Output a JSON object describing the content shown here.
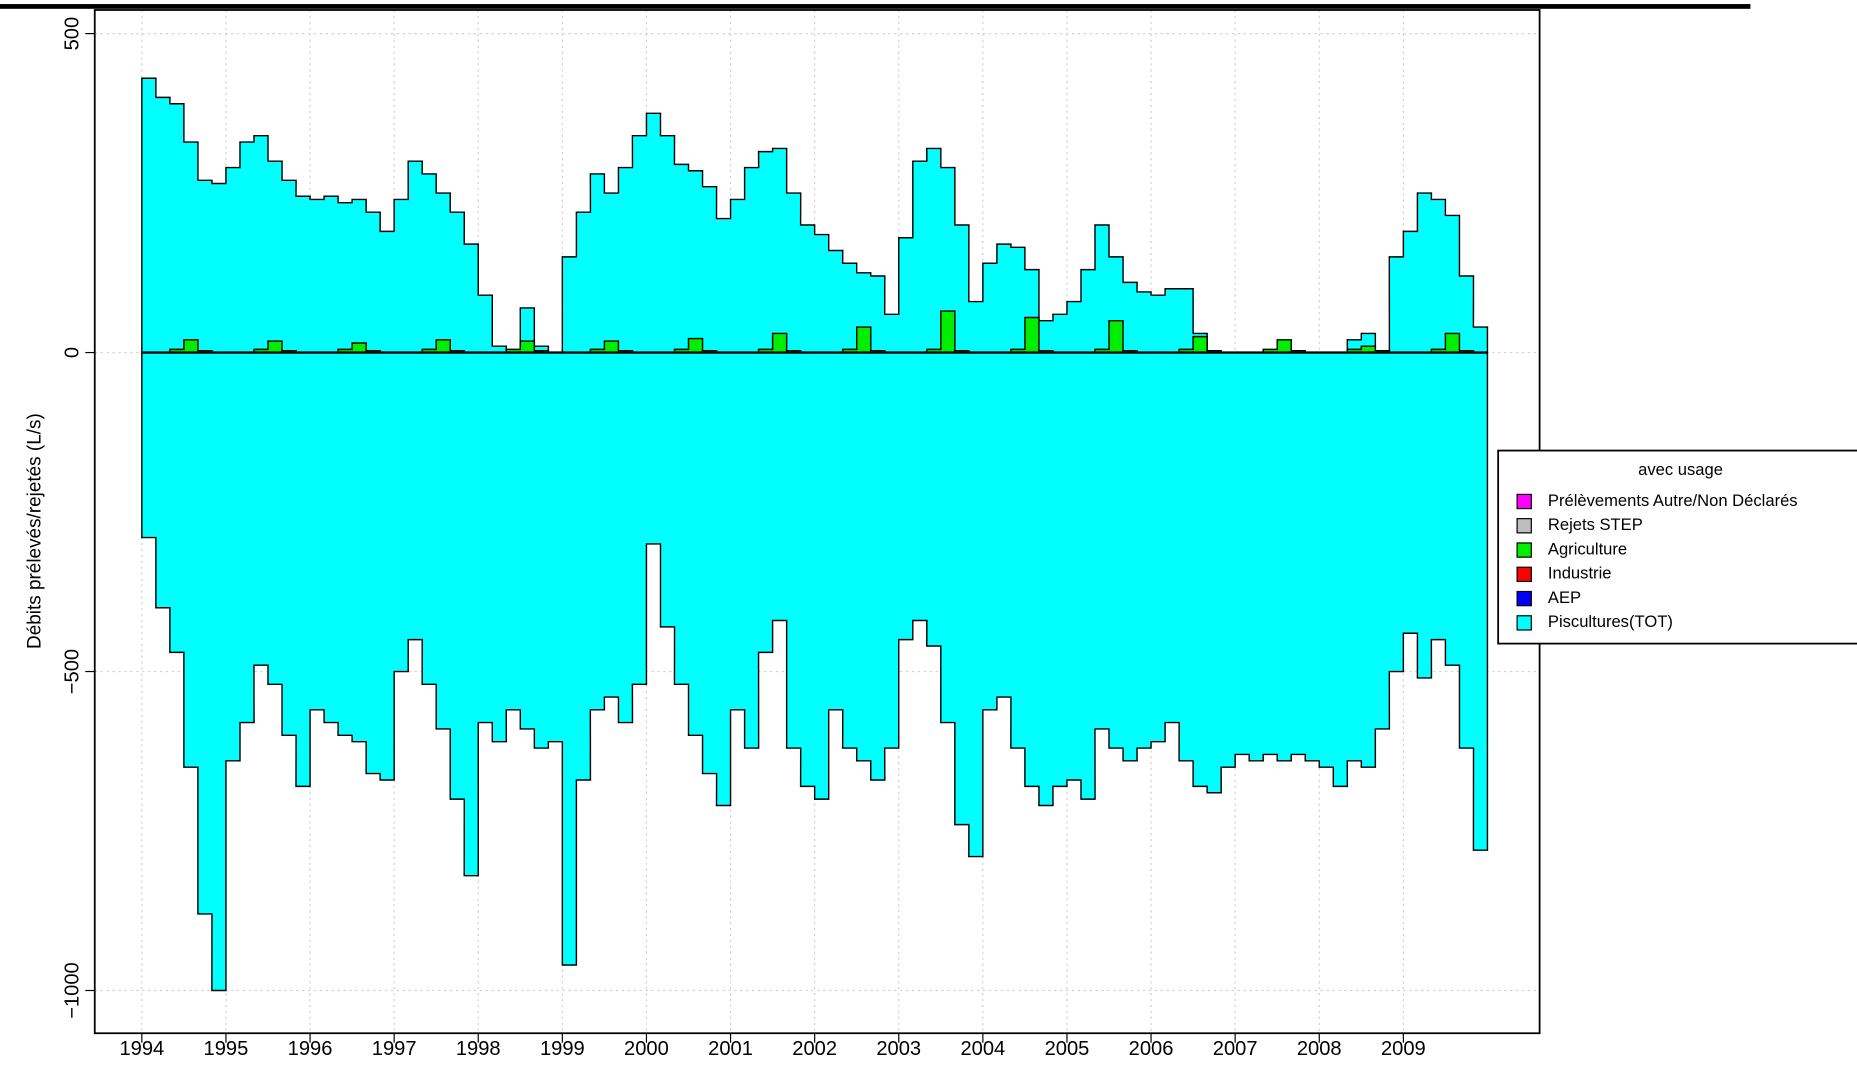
{
  "chart_data": {
    "type": "step-area",
    "ylabel": "Débits prélevés/rejetés (L/s)",
    "legend_title": "avec usage",
    "x": [
      1994,
      1994.167,
      1994.333,
      1994.5,
      1994.667,
      1994.833,
      1995,
      1995.167,
      1995.333,
      1995.5,
      1995.667,
      1995.833,
      1996,
      1996.167,
      1996.333,
      1996.5,
      1996.667,
      1996.833,
      1997,
      1997.167,
      1997.333,
      1997.5,
      1997.667,
      1997.833,
      1998,
      1998.167,
      1998.333,
      1998.5,
      1998.667,
      1998.833,
      1999,
      1999.167,
      1999.333,
      1999.5,
      1999.667,
      1999.833,
      2000,
      2000.167,
      2000.333,
      2000.5,
      2000.667,
      2000.833,
      2001,
      2001.167,
      2001.333,
      2001.5,
      2001.667,
      2001.833,
      2002,
      2002.167,
      2002.333,
      2002.5,
      2002.667,
      2002.833,
      2003,
      2003.167,
      2003.333,
      2003.5,
      2003.667,
      2003.833,
      2004,
      2004.167,
      2004.333,
      2004.5,
      2004.667,
      2004.833,
      2005,
      2005.167,
      2005.333,
      2005.5,
      2005.667,
      2005.833,
      2006,
      2006.167,
      2006.333,
      2006.5,
      2006.667,
      2006.833,
      2007,
      2007.167,
      2007.333,
      2007.5,
      2007.667,
      2007.833,
      2008,
      2008.167,
      2008.333,
      2008.5,
      2008.667,
      2008.833,
      2009,
      2009.167,
      2009.333,
      2009.5,
      2009.667,
      2009.833
    ],
    "xlim": [
      1993.44,
      2010.62
    ],
    "xticks": [
      1994,
      1995,
      1996,
      1997,
      1998,
      1999,
      2000,
      2001,
      2002,
      2003,
      2004,
      2005,
      2006,
      2007,
      2008,
      2009
    ],
    "ylim": [
      -1067,
      537
    ],
    "yticks": [
      500,
      0,
      {
        "value": -500,
        "label": "−500"
      },
      {
        "value": -1000,
        "label": "−1000"
      }
    ],
    "grid": true,
    "series": [
      {
        "name": "Prélèvements Autre/Non Déclarés",
        "color": "#ff00ff"
      },
      {
        "name": "Rejets STEP",
        "color": "#bebebe"
      },
      {
        "name": "Agriculture",
        "color": "#00ee00",
        "values": [
          0,
          0,
          5,
          20,
          3,
          0,
          0,
          0,
          5,
          18,
          3,
          0,
          0,
          0,
          5,
          15,
          3,
          0,
          0,
          0,
          5,
          20,
          3,
          0,
          0,
          0,
          5,
          18,
          3,
          0,
          0,
          0,
          5,
          18,
          3,
          0,
          0,
          0,
          5,
          22,
          3,
          0,
          0,
          0,
          5,
          30,
          3,
          0,
          0,
          0,
          5,
          40,
          3,
          0,
          0,
          0,
          5,
          65,
          3,
          0,
          0,
          0,
          5,
          55,
          3,
          0,
          0,
          0,
          5,
          50,
          3,
          0,
          0,
          0,
          5,
          25,
          3,
          0,
          0,
          0,
          5,
          20,
          3,
          0,
          0,
          0,
          5,
          10,
          3,
          0,
          0,
          0,
          5,
          30,
          3,
          0
        ]
      },
      {
        "name": "Industrie",
        "color": "#ff0000"
      },
      {
        "name": "AEP",
        "color": "#0000ff"
      },
      {
        "name": "Piscultures(TOT)",
        "color": "#00ffff",
        "values": [
          430,
          400,
          390,
          330,
          270,
          265,
          290,
          330,
          340,
          300,
          270,
          245,
          240,
          245,
          235,
          240,
          220,
          190,
          240,
          300,
          280,
          250,
          220,
          170,
          90,
          10,
          0,
          70,
          10,
          0,
          150,
          220,
          280,
          250,
          290,
          340,
          375,
          340,
          295,
          285,
          260,
          210,
          240,
          290,
          315,
          320,
          250,
          200,
          185,
          160,
          140,
          125,
          120,
          60,
          180,
          300,
          320,
          290,
          200,
          80,
          140,
          170,
          165,
          130,
          50,
          60,
          80,
          130,
          200,
          150,
          110,
          95,
          90,
          100,
          100,
          30,
          0,
          0,
          0,
          0,
          0,
          0,
          0,
          0,
          0,
          0,
          20,
          30,
          0,
          150,
          190,
          250,
          240,
          215,
          120,
          40
        ],
        "negative": [
          -290,
          -400,
          -470,
          -650,
          -880,
          -1000,
          -640,
          -580,
          -490,
          -520,
          -600,
          -680,
          -560,
          -580,
          -600,
          -610,
          -660,
          -670,
          -500,
          -450,
          -520,
          -590,
          -700,
          -820,
          -580,
          -610,
          -560,
          -590,
          -620,
          -610,
          -960,
          -670,
          -560,
          -540,
          -580,
          -520,
          -300,
          -430,
          -520,
          -600,
          -660,
          -710,
          -560,
          -620,
          -470,
          -420,
          -620,
          -680,
          -700,
          -560,
          -620,
          -640,
          -670,
          -620,
          -450,
          -420,
          -460,
          -580,
          -740,
          -790,
          -560,
          -540,
          -620,
          -680,
          -710,
          -680,
          -670,
          -700,
          -590,
          -620,
          -640,
          -620,
          -610,
          -580,
          -640,
          -680,
          -690,
          -650,
          -630,
          -640,
          -630,
          -640,
          -630,
          -640,
          -650,
          -680,
          -640,
          -650,
          -590,
          -500,
          -440,
          -510,
          -450,
          -490,
          -620,
          -780
        ]
      }
    ]
  }
}
